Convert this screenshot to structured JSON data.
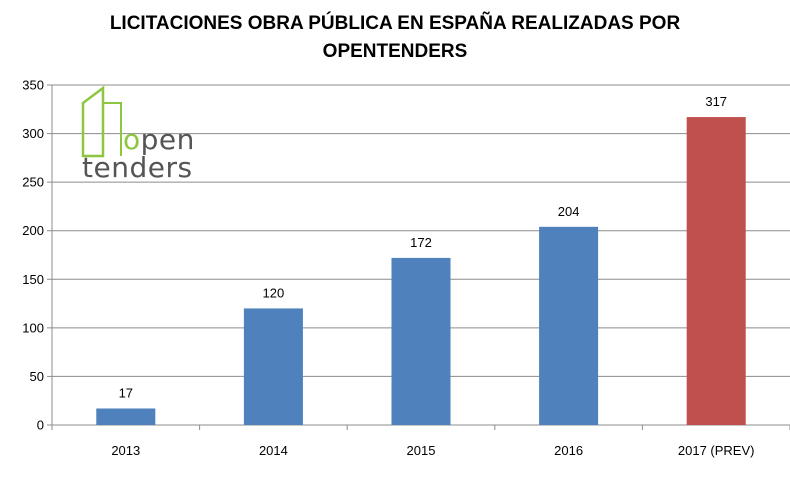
{
  "title_lines": [
    "LICITACIONES OBRA PÚBLICA EN ESPAÑA REALIZADAS POR",
    "OPENTENDERS"
  ],
  "logo": {
    "word1_part_a": "o",
    "word1_part_b": "pen",
    "word2": "tenders",
    "accent_color": "#8dc63f",
    "text_color": "#555555"
  },
  "chart_data": {
    "type": "bar",
    "title": "LICITACIONES OBRA PÚBLICA EN ESPAÑA REALIZADAS POR OPENTENDERS",
    "categories": [
      "2013",
      "2014",
      "2015",
      "2016",
      "2017 (PREV)"
    ],
    "values": [
      17,
      120,
      172,
      204,
      317
    ],
    "bar_colors": [
      "#4f81bd",
      "#4f81bd",
      "#4f81bd",
      "#4f81bd",
      "#c0504d"
    ],
    "y_ticks": [
      "0",
      "50",
      "100",
      "150",
      "200",
      "250",
      "300",
      "350"
    ],
    "ylim": [
      0,
      350
    ],
    "grid": true,
    "legend": "none",
    "xlabel": "",
    "ylabel": ""
  }
}
